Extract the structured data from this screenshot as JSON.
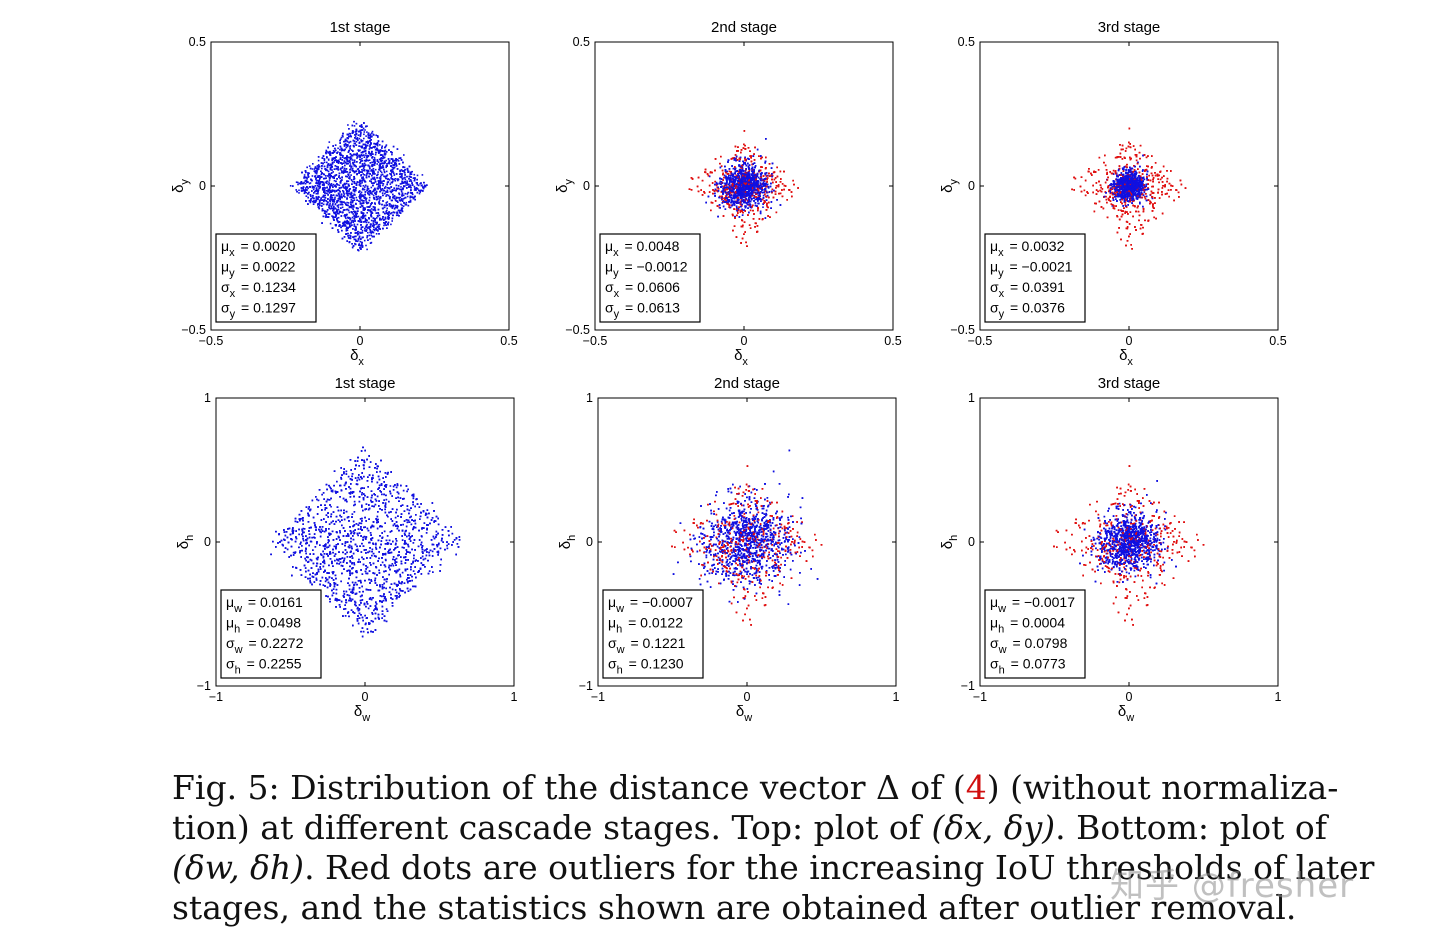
{
  "chart_data": [
    {
      "type": "scatter",
      "title": "1st stage",
      "xlabel": "δx",
      "ylabel": "δy",
      "xlim": [
        -0.5,
        0.5
      ],
      "ylim": [
        -0.5,
        0.5
      ],
      "xticks": [
        "−0.5",
        "0",
        "0.5"
      ],
      "yticks": [
        "−0.5",
        "0",
        "0.5"
      ],
      "spread": 0.45,
      "inlier_core": 0.45,
      "has_outliers": false,
      "inlier_color": "#1010e0",
      "stats": [
        {
          "sym": "μ",
          "sub": "x",
          "value": "= 0.0020"
        },
        {
          "sym": "μ",
          "sub": "y",
          "value": "= 0.0022"
        },
        {
          "sym": "σ",
          "sub": "x",
          "value": "= 0.1234"
        },
        {
          "sym": "σ",
          "sub": "y",
          "value": "= 0.1297"
        }
      ]
    },
    {
      "type": "scatter",
      "title": "2nd stage",
      "xlabel": "δx",
      "ylabel": "δy",
      "xlim": [
        -0.5,
        0.5
      ],
      "ylim": [
        -0.5,
        0.5
      ],
      "xticks": [
        "−0.5",
        "0",
        "0.5"
      ],
      "yticks": [
        "−0.5",
        "0",
        "0.5"
      ],
      "spread": 0.45,
      "inlier_core": 0.17,
      "has_outliers": true,
      "inlier_color": "#1010e0",
      "outlier_color": "#e01010",
      "stats": [
        {
          "sym": "μ",
          "sub": "x",
          "value": "= 0.0048"
        },
        {
          "sym": "μ",
          "sub": "y",
          "value": "= −0.0012"
        },
        {
          "sym": "σ",
          "sub": "x",
          "value": "= 0.0606"
        },
        {
          "sym": "σ",
          "sub": "y",
          "value": "= 0.0613"
        }
      ]
    },
    {
      "type": "scatter",
      "title": "3rd stage",
      "xlabel": "δx",
      "ylabel": "δy",
      "xlim": [
        -0.5,
        0.5
      ],
      "ylim": [
        -0.5,
        0.5
      ],
      "xticks": [
        "−0.5",
        "0",
        "0.5"
      ],
      "yticks": [
        "−0.5",
        "0",
        "0.5"
      ],
      "spread": 0.47,
      "inlier_core": 0.11,
      "has_outliers": true,
      "inlier_color": "#1010e0",
      "outlier_color": "#e01010",
      "stats": [
        {
          "sym": "μ",
          "sub": "x",
          "value": "= 0.0032"
        },
        {
          "sym": "μ",
          "sub": "y",
          "value": "= −0.0021"
        },
        {
          "sym": "σ",
          "sub": "x",
          "value": "= 0.0391"
        },
        {
          "sym": "σ",
          "sub": "y",
          "value": "= 0.0376"
        }
      ]
    },
    {
      "type": "scatter",
      "title": "1st stage",
      "xlabel": "δw",
      "ylabel": "δh",
      "xlim": [
        -1,
        1
      ],
      "ylim": [
        -1,
        1
      ],
      "xticks": [
        "−1",
        "0",
        "1"
      ],
      "yticks": [
        "−1",
        "0",
        "1"
      ],
      "spread": 0.65,
      "inlier_core": 0.65,
      "has_outliers": false,
      "inlier_color": "#1010e0",
      "stats": [
        {
          "sym": "μ",
          "sub": "w",
          "value": "= 0.0161"
        },
        {
          "sym": "μ",
          "sub": "h",
          "value": "= 0.0498"
        },
        {
          "sym": "σ",
          "sub": "w",
          "value": "= 0.2272"
        },
        {
          "sym": "σ",
          "sub": "h",
          "value": "= 0.2255"
        }
      ]
    },
    {
      "type": "scatter",
      "title": "2nd stage",
      "xlabel": "δw",
      "ylabel": "δh",
      "xlim": [
        -1,
        1
      ],
      "ylim": [
        -1,
        1
      ],
      "xticks": [
        "−1",
        "0",
        "1"
      ],
      "yticks": [
        "−1",
        "0",
        "1"
      ],
      "spread": 0.62,
      "inlier_core": 0.33,
      "has_outliers": true,
      "inlier_color": "#1010e0",
      "outlier_color": "#e01010",
      "stats": [
        {
          "sym": "μ",
          "sub": "w",
          "value": "= −0.0007"
        },
        {
          "sym": "μ",
          "sub": "h",
          "value": "= 0.0122"
        },
        {
          "sym": "σ",
          "sub": "w",
          "value": "= 0.1221"
        },
        {
          "sym": "σ",
          "sub": "h",
          "value": "= 0.1230"
        }
      ]
    },
    {
      "type": "scatter",
      "title": "3rd stage",
      "xlabel": "δw",
      "ylabel": "δh",
      "xlim": [
        -1,
        1
      ],
      "ylim": [
        -1,
        1
      ],
      "xticks": [
        "−1",
        "0",
        "1"
      ],
      "yticks": [
        "−1",
        "0",
        "1"
      ],
      "spread": 0.62,
      "inlier_core": 0.22,
      "has_outliers": true,
      "inlier_color": "#1010e0",
      "outlier_color": "#e01010",
      "stats": [
        {
          "sym": "μ",
          "sub": "w",
          "value": "= −0.0017"
        },
        {
          "sym": "μ",
          "sub": "h",
          "value": "= 0.0004"
        },
        {
          "sym": "σ",
          "sub": "w",
          "value": "= 0.0798"
        },
        {
          "sym": "σ",
          "sub": "h",
          "value": "= 0.0773"
        }
      ]
    }
  ],
  "caption": {
    "l1_pre": "Fig. 5: Distribution of the distance vector Δ of (",
    "ref": "4",
    "l1_post": ") (without normaliza-",
    "l2_pre": "tion) at different cascade stages. Top: plot of ",
    "l2_math": "(δx, δy)",
    "l2_post": ". Bottom: plot of",
    "l3_math": "(δw, δh)",
    "l3_post": ". Red dots are outliers for the increasing IoU thresholds of later",
    "l4": "stages, and the statistics shown are obtained after outlier removal."
  },
  "watermark": "知乎 @fresher"
}
